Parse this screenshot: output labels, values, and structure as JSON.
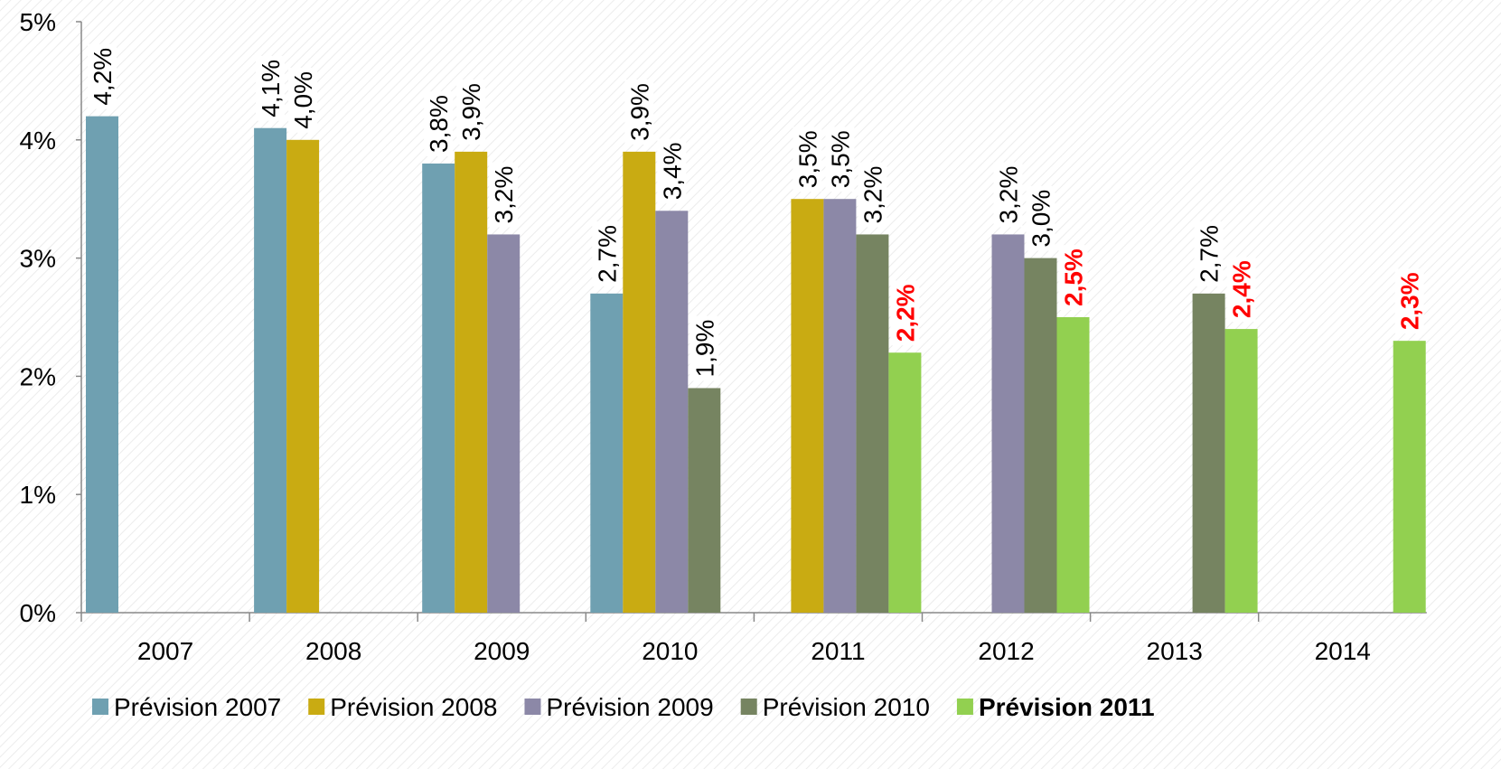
{
  "chart_data": {
    "type": "bar",
    "categories": [
      "2007",
      "2008",
      "2009",
      "2010",
      "2011",
      "2012",
      "2013",
      "2014"
    ],
    "series": [
      {
        "name": "Prévision 2007",
        "color": "#6fa0b1",
        "values": [
          4.2,
          4.1,
          3.8,
          2.7,
          null,
          null,
          null,
          null
        ],
        "value_labels": [
          "4,2%",
          "4,1%",
          "3,8%",
          "2,7%",
          null,
          null,
          null,
          null
        ]
      },
      {
        "name": "Prévision 2008",
        "color": "#c9ab12",
        "values": [
          null,
          4.0,
          3.9,
          3.9,
          3.5,
          null,
          null,
          null
        ],
        "value_labels": [
          null,
          "4,0%",
          "3,9%",
          "3,9%",
          "3,5%",
          null,
          null,
          null
        ]
      },
      {
        "name": "Prévision 2009",
        "color": "#8c88a7",
        "values": [
          null,
          null,
          3.2,
          3.4,
          3.5,
          3.2,
          null,
          null
        ],
        "value_labels": [
          null,
          null,
          "3,2%",
          "3,4%",
          "3,5%",
          "3,2%",
          null,
          null
        ]
      },
      {
        "name": "Prévision 2010",
        "color": "#768461",
        "values": [
          null,
          null,
          null,
          1.9,
          3.2,
          3.0,
          2.7,
          null
        ],
        "value_labels": [
          null,
          null,
          null,
          "1,9%",
          "3,2%",
          "3,0%",
          "2,7%",
          null
        ]
      },
      {
        "name": "Prévision 2011",
        "color": "#92d050",
        "label_color": "#ff0000",
        "values": [
          null,
          null,
          null,
          null,
          2.2,
          2.5,
          2.4,
          2.3
        ],
        "value_labels": [
          null,
          null,
          null,
          null,
          "2,2%",
          "2,5%",
          "2,4%",
          "2,3%"
        ]
      }
    ],
    "ylim": [
      0,
      5
    ],
    "yticks": [
      {
        "value": 0,
        "label": "0%"
      },
      {
        "value": 1,
        "label": "1%"
      },
      {
        "value": 2,
        "label": "2%"
      },
      {
        "value": 3,
        "label": "3%"
      },
      {
        "value": 4,
        "label": "4%"
      },
      {
        "value": 5,
        "label": "5%"
      }
    ],
    "legend": "bottom"
  }
}
